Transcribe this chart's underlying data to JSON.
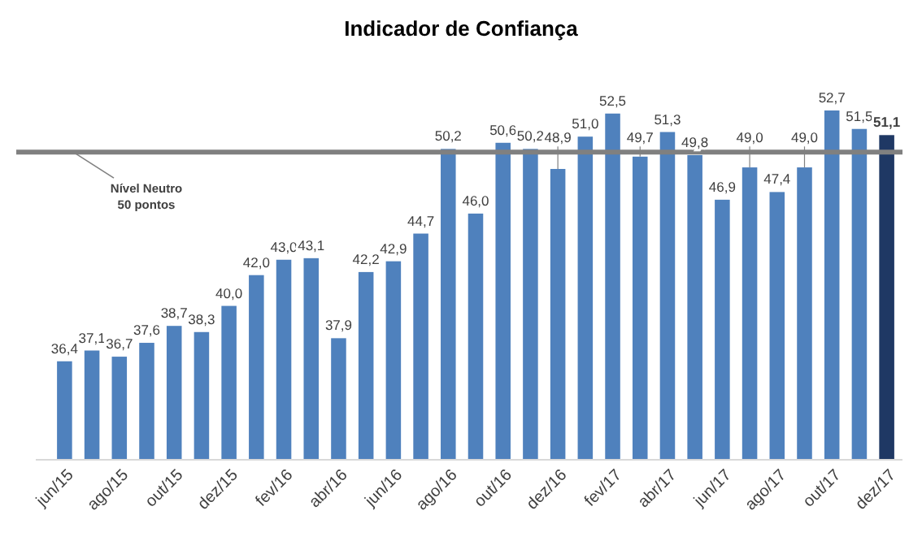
{
  "chart_data": {
    "type": "bar",
    "title": "Indicador de Confiança",
    "categories": [
      "jun/15",
      null,
      "ago/15",
      null,
      "out/15",
      null,
      "dez/15",
      null,
      "fev/16",
      null,
      "abr/16",
      null,
      "jun/16",
      null,
      "ago/16",
      null,
      "out/16",
      null,
      "dez/16",
      null,
      "fev/17",
      null,
      "abr/17",
      null,
      "jun/17",
      null,
      "ago/17",
      null,
      "out/17",
      null,
      "dez/17"
    ],
    "values": [
      36.4,
      37.1,
      36.7,
      37.6,
      38.7,
      38.3,
      40.0,
      42.0,
      43.0,
      43.1,
      37.9,
      42.2,
      42.9,
      44.7,
      50.2,
      46.0,
      50.6,
      50.2,
      48.9,
      51.0,
      52.5,
      49.7,
      51.3,
      49.8,
      46.9,
      49.0,
      47.4,
      49.0,
      52.7,
      51.5,
      51.1
    ],
    "value_labels": [
      "36,4",
      "37,1",
      "36,7",
      "37,6",
      "38,7",
      "38,3",
      "40,0",
      "42,0",
      "43,0",
      "43,1",
      "37,9",
      "42,2",
      "42,9",
      "44,7",
      "50,2",
      "46,0",
      "50,6",
      "50,2",
      "48,9",
      "51,0",
      "52,5",
      "49,7",
      "51,3",
      "49,8",
      "46,9",
      "49,0",
      "47,4",
      "49,0",
      "52,7",
      "51,5",
      "51,1"
    ],
    "colors": [
      "#4f81bd",
      "#4f81bd",
      "#4f81bd",
      "#4f81bd",
      "#4f81bd",
      "#4f81bd",
      "#4f81bd",
      "#4f81bd",
      "#4f81bd",
      "#4f81bd",
      "#4f81bd",
      "#4f81bd",
      "#4f81bd",
      "#4f81bd",
      "#4f81bd",
      "#4f81bd",
      "#4f81bd",
      "#4f81bd",
      "#4f81bd",
      "#4f81bd",
      "#4f81bd",
      "#4f81bd",
      "#4f81bd",
      "#4f81bd",
      "#4f81bd",
      "#4f81bd",
      "#4f81bd",
      "#4f81bd",
      "#4f81bd",
      "#4f81bd",
      "#1f3864"
    ],
    "ylim": [
      30,
      52.7
    ],
    "tick_labels": "x",
    "ref_lines": [
      {
        "axis": "y",
        "value": 50,
        "label": "Nível Neutro\n50 pontos",
        "color": "#808080"
      }
    ]
  }
}
